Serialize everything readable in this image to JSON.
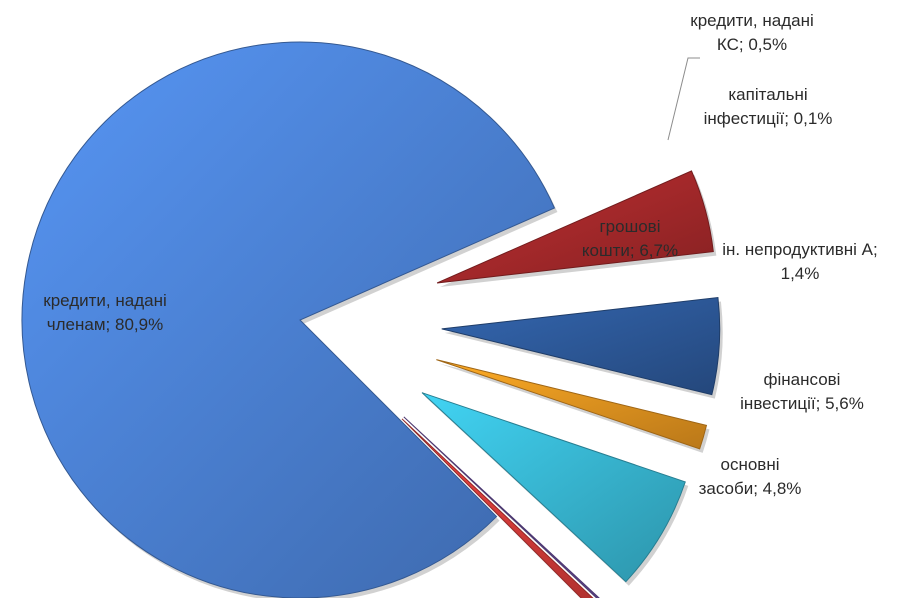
{
  "chart_data": {
    "type": "pie",
    "title": "",
    "exploded": true,
    "slices": [
      {
        "name": "кредити, надані членам",
        "value": 80.9,
        "label_lines": [
          "кредити, надані",
          "членам; 80,9%"
        ],
        "color": "#4a7fd0"
      },
      {
        "name": "основні засоби",
        "value": 4.8,
        "label_lines": [
          "основні",
          "засоби; 4,8%"
        ],
        "color": "#a3282a"
      },
      {
        "name": "фінансові інвестиції",
        "value": 5.6,
        "label_lines": [
          "фінансові",
          "інвестиції; 5,6%"
        ],
        "color": "#2c5796"
      },
      {
        "name": "ін. непродуктивні А",
        "value": 1.4,
        "label_lines": [
          "ін. непродуктивні А;",
          "1,4%"
        ],
        "color": "#e3921f"
      },
      {
        "name": "грошові кошти",
        "value": 6.7,
        "label_lines": [
          "грошові",
          "кошти; 6,7%"
        ],
        "color": "#37b4cf"
      },
      {
        "name": "капітальні інфестиції",
        "value": 0.1,
        "label_lines": [
          "капітальні",
          "інфестиції; 0,1%"
        ],
        "color": "#6b4fa0"
      },
      {
        "name": "кредити, надані КС",
        "value": 0.5,
        "label_lines": [
          "кредити, надані",
          "КС; 0,5%"
        ],
        "color": "#d23a38"
      }
    ]
  }
}
